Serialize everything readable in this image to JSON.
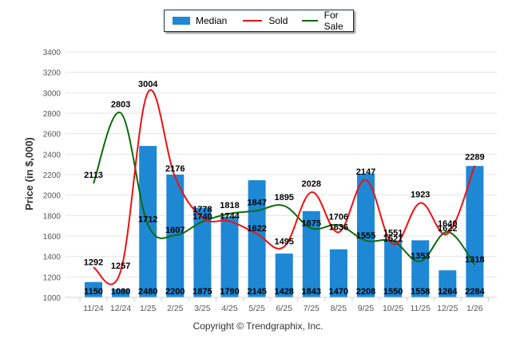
{
  "legend": {
    "items": [
      {
        "label": "Median",
        "kind": "bar",
        "color": "#1e88d4"
      },
      {
        "label": "Sold",
        "kind": "line",
        "color": "#ee1111"
      },
      {
        "label": "For Sale",
        "kind": "line",
        "color": "#0b6b0b"
      }
    ]
  },
  "copyright": "Copyright © Trendgraphix, Inc.",
  "chart_data": {
    "type": "bar",
    "title": "",
    "xlabel": "",
    "ylabel": "Price (in $,000)",
    "ylim": [
      1000,
      3400
    ],
    "yticks": [
      1000,
      1200,
      1400,
      1600,
      1800,
      2000,
      2200,
      2400,
      2600,
      2800,
      3000,
      3200,
      3400
    ],
    "grid": true,
    "legend_position": "top-center",
    "categories": [
      "11/24",
      "12/24",
      "1/25",
      "2/25",
      "3/25",
      "4/25",
      "5/25",
      "6/25",
      "7/25",
      "8/25",
      "9/25",
      "10/25",
      "11/25",
      "12/25",
      "1/26"
    ],
    "series": [
      {
        "name": "Median",
        "type": "bar",
        "color": "#1e88d4",
        "values": [
          1150,
          1080,
          2480,
          2200,
          1875,
          1790,
          2145,
          1428,
          1843,
          1470,
          2208,
          1550,
          1558,
          1264,
          2284
        ]
      },
      {
        "name": "Sold",
        "type": "line",
        "color": "#ee1111",
        "values": [
          1292,
          1257,
          3004,
          2176,
          1778,
          1744,
          1622,
          1495,
          2028,
          1636,
          2147,
          1521,
          1923,
          1622,
          2289
        ]
      },
      {
        "name": "For Sale",
        "type": "line",
        "color": "#0b6b0b",
        "values": [
          2113,
          2803,
          1712,
          1607,
          1740,
          1818,
          1847,
          1895,
          1675,
          1706,
          1555,
          1551,
          1353,
          1640,
          1318
        ]
      }
    ]
  }
}
